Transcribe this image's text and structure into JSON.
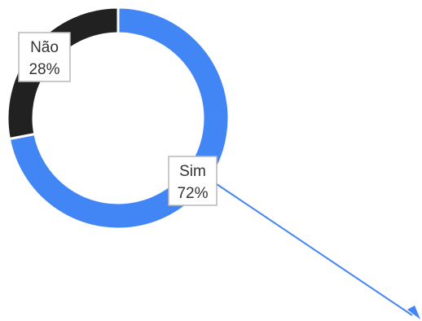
{
  "chart_data": {
    "type": "pie",
    "style": "donut",
    "title": "",
    "categories": [
      "Sim",
      "Não"
    ],
    "values": [
      72,
      28
    ],
    "value_labels": [
      "72%",
      "28%"
    ],
    "colors": [
      "#4285f4",
      "#212121"
    ],
    "legend": "none"
  }
}
